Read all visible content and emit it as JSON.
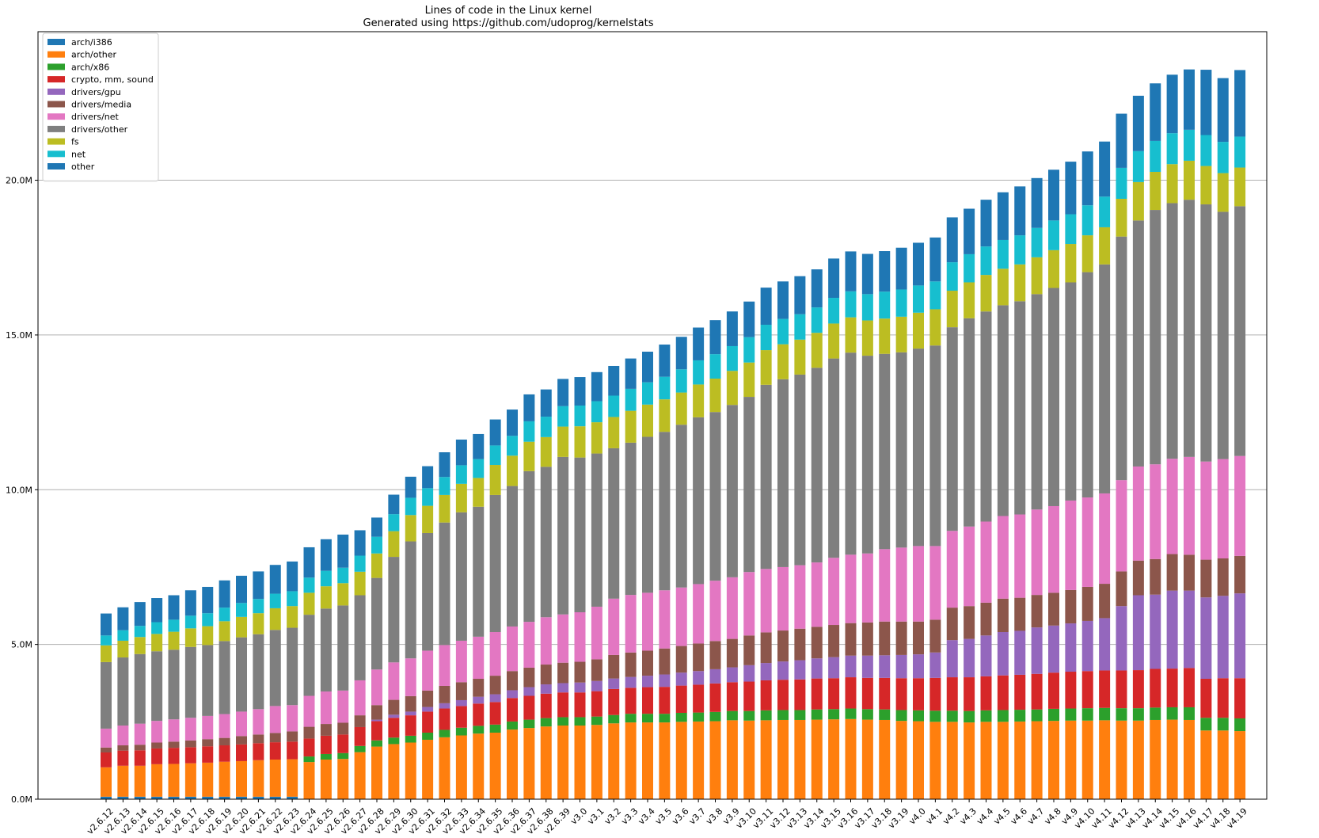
{
  "chart_data": {
    "type": "bar",
    "stacked": true,
    "title": "Lines of code in the Linux kernel",
    "subtitle": "Generated using https://github.com/udoprog/kernelstats",
    "xlabel": "",
    "ylabel": "",
    "ylim": [
      0,
      24800000
    ],
    "yticks": [
      0,
      5000000,
      10000000,
      15000000,
      20000000
    ],
    "ytick_labels": [
      "0.0M",
      "5.0M",
      "10.0M",
      "15.0M",
      "20.0M"
    ],
    "grid_y": true,
    "legend_position": "top-left",
    "categories": [
      "v2.6.12",
      "v2.6.13",
      "v2.6.14",
      "v2.6.15",
      "v2.6.16",
      "v2.6.17",
      "v2.6.18",
      "v2.6.19",
      "v2.6.20",
      "v2.6.21",
      "v2.6.22",
      "v2.6.23",
      "v2.6.24",
      "v2.6.25",
      "v2.6.26",
      "v2.6.27",
      "v2.6.28",
      "v2.6.29",
      "v2.6.30",
      "v2.6.31",
      "v2.6.32",
      "v2.6.33",
      "v2.6.34",
      "v2.6.35",
      "v2.6.36",
      "v2.6.37",
      "v2.6.38",
      "v2.6.39",
      "v3.0",
      "v3.1",
      "v3.2",
      "v3.3",
      "v3.4",
      "v3.5",
      "v3.6",
      "v3.7",
      "v3.8",
      "v3.9",
      "v3.10",
      "v3.11",
      "v3.12",
      "v3.13",
      "v3.14",
      "v3.15",
      "v3.16",
      "v3.17",
      "v3.18",
      "v3.19",
      "v4.0",
      "v4.1",
      "v4.2",
      "v4.3",
      "v4.4",
      "v4.5",
      "v4.6",
      "v4.7",
      "v4.8",
      "v4.9",
      "v4.10",
      "v4.11",
      "v4.12",
      "v4.13",
      "v4.14",
      "v4.15",
      "v4.16",
      "v4.17",
      "v4.18",
      "v4.19"
    ],
    "series": [
      {
        "name": "arch/i386",
        "color": "#1f77b4",
        "values": [
          80000,
          80000,
          80000,
          80000,
          80000,
          80000,
          80000,
          80000,
          80000,
          80000,
          80000,
          80000,
          0,
          0,
          0,
          0,
          0,
          0,
          0,
          0,
          0,
          0,
          0,
          0,
          0,
          0,
          0,
          0,
          0,
          0,
          0,
          0,
          0,
          0,
          0,
          0,
          0,
          0,
          0,
          0,
          0,
          0,
          0,
          0,
          0,
          0,
          0,
          0,
          0,
          0,
          0,
          0,
          0,
          0,
          0,
          0,
          0,
          0,
          0,
          0,
          0,
          0,
          0,
          0,
          0,
          0,
          0,
          0
        ]
      },
      {
        "name": "arch/other",
        "color": "#ff7f0e",
        "values": [
          950000,
          1000000,
          1000000,
          1050000,
          1060000,
          1080000,
          1100000,
          1130000,
          1150000,
          1180000,
          1200000,
          1210000,
          1200000,
          1280000,
          1300000,
          1520000,
          1700000,
          1780000,
          1830000,
          1920000,
          2000000,
          2060000,
          2120000,
          2150000,
          2250000,
          2300000,
          2350000,
          2380000,
          2380000,
          2400000,
          2450000,
          2480000,
          2480000,
          2480000,
          2500000,
          2510000,
          2520000,
          2550000,
          2540000,
          2550000,
          2560000,
          2560000,
          2570000,
          2580000,
          2590000,
          2570000,
          2560000,
          2530000,
          2520000,
          2500000,
          2500000,
          2480000,
          2500000,
          2500000,
          2510000,
          2520000,
          2530000,
          2540000,
          2540000,
          2550000,
          2540000,
          2540000,
          2560000,
          2570000,
          2560000,
          2220000,
          2220000,
          2200000
        ]
      },
      {
        "name": "arch/x86",
        "color": "#2ca02c",
        "values": [
          0,
          0,
          0,
          0,
          0,
          0,
          0,
          0,
          0,
          0,
          0,
          0,
          180000,
          180000,
          190000,
          200000,
          200000,
          210000,
          220000,
          230000,
          240000,
          250000,
          250000,
          260000,
          260000,
          270000,
          270000,
          270000,
          270000,
          270000,
          270000,
          280000,
          280000,
          280000,
          290000,
          290000,
          300000,
          300000,
          310000,
          320000,
          320000,
          320000,
          330000,
          330000,
          340000,
          340000,
          340000,
          350000,
          350000,
          360000,
          360000,
          370000,
          370000,
          380000,
          380000,
          380000,
          390000,
          390000,
          400000,
          400000,
          400000,
          400000,
          400000,
          400000,
          410000,
          410000,
          410000,
          410000
        ]
      },
      {
        "name": "crypto, mm, sound",
        "color": "#d62728",
        "values": [
          480000,
          490000,
          500000,
          510000,
          520000,
          520000,
          530000,
          530000,
          540000,
          550000,
          560000,
          570000,
          580000,
          590000,
          600000,
          610000,
          620000,
          640000,
          660000,
          680000,
          690000,
          700000,
          720000,
          730000,
          760000,
          770000,
          790000,
          800000,
          800000,
          820000,
          840000,
          840000,
          860000,
          870000,
          880000,
          900000,
          920000,
          930000,
          950000,
          970000,
          980000,
          990000,
          1000000,
          1000000,
          1010000,
          1010000,
          1020000,
          1030000,
          1040000,
          1060000,
          1080000,
          1090000,
          1100000,
          1120000,
          1130000,
          1150000,
          1170000,
          1190000,
          1200000,
          1210000,
          1220000,
          1230000,
          1250000,
          1250000,
          1270000,
          1260000,
          1280000,
          1300000
        ]
      },
      {
        "name": "drivers/gpu",
        "color": "#9467bd",
        "values": [
          0,
          0,
          0,
          0,
          0,
          0,
          0,
          0,
          0,
          0,
          0,
          0,
          0,
          0,
          0,
          0,
          50000,
          100000,
          120000,
          150000,
          170000,
          190000,
          220000,
          250000,
          250000,
          280000,
          300000,
          300000,
          320000,
          330000,
          340000,
          350000,
          370000,
          400000,
          420000,
          440000,
          460000,
          480000,
          530000,
          560000,
          590000,
          620000,
          650000,
          680000,
          700000,
          720000,
          730000,
          750000,
          770000,
          820000,
          1200000,
          1240000,
          1320000,
          1400000,
          1420000,
          1500000,
          1520000,
          1560000,
          1620000,
          1690000,
          2080000,
          2420000,
          2400000,
          2520000,
          2500000,
          2630000,
          2660000,
          2740000
        ]
      },
      {
        "name": "drivers/media",
        "color": "#8c564b",
        "values": [
          160000,
          170000,
          180000,
          190000,
          200000,
          220000,
          230000,
          240000,
          270000,
          280000,
          300000,
          330000,
          380000,
          380000,
          380000,
          380000,
          470000,
          480000,
          500000,
          530000,
          560000,
          580000,
          580000,
          600000,
          620000,
          630000,
          640000,
          660000,
          670000,
          700000,
          760000,
          790000,
          810000,
          840000,
          860000,
          890000,
          910000,
          920000,
          960000,
          990000,
          1000000,
          1020000,
          1020000,
          1040000,
          1050000,
          1070000,
          1090000,
          1080000,
          1060000,
          1060000,
          1050000,
          1060000,
          1060000,
          1080000,
          1070000,
          1050000,
          1060000,
          1080000,
          1100000,
          1110000,
          1120000,
          1120000,
          1150000,
          1180000,
          1160000,
          1220000,
          1210000,
          1210000
        ]
      },
      {
        "name": "drivers/net",
        "color": "#e377c2",
        "values": [
          610000,
          640000,
          680000,
          700000,
          720000,
          730000,
          750000,
          770000,
          790000,
          820000,
          870000,
          850000,
          1000000,
          1050000,
          1040000,
          1130000,
          1150000,
          1210000,
          1220000,
          1290000,
          1320000,
          1340000,
          1360000,
          1410000,
          1440000,
          1480000,
          1530000,
          1560000,
          1600000,
          1700000,
          1820000,
          1860000,
          1870000,
          1880000,
          1890000,
          1920000,
          1950000,
          1990000,
          2050000,
          2050000,
          2050000,
          2050000,
          2080000,
          2170000,
          2210000,
          2230000,
          2340000,
          2390000,
          2440000,
          2380000,
          2480000,
          2570000,
          2620000,
          2670000,
          2690000,
          2760000,
          2800000,
          2890000,
          2890000,
          2920000,
          2950000,
          3040000,
          3060000,
          3080000,
          3160000,
          3170000,
          3210000,
          3230000
        ]
      },
      {
        "name": "drivers/other",
        "color": "#7f7f7f",
        "values": [
          2150000,
          2200000,
          2250000,
          2250000,
          2250000,
          2290000,
          2290000,
          2360000,
          2400000,
          2420000,
          2460000,
          2500000,
          2620000,
          2680000,
          2750000,
          2750000,
          2960000,
          3410000,
          3780000,
          3800000,
          3960000,
          4150000,
          4200000,
          4430000,
          4540000,
          4870000,
          4860000,
          5090000,
          5000000,
          4950000,
          4860000,
          4920000,
          5040000,
          5120000,
          5260000,
          5390000,
          5450000,
          5570000,
          5660000,
          5950000,
          6070000,
          6160000,
          6290000,
          6440000,
          6530000,
          6390000,
          6310000,
          6310000,
          6380000,
          6480000,
          6580000,
          6730000,
          6790000,
          6810000,
          6890000,
          6960000,
          7050000,
          7050000,
          7280000,
          7400000,
          7870000,
          7950000,
          8220000,
          8260000,
          8310000,
          8310000,
          7990000,
          8070000
        ]
      },
      {
        "name": "fs",
        "color": "#bcbd22",
        "values": [
          540000,
          540000,
          550000,
          560000,
          580000,
          600000,
          610000,
          640000,
          660000,
          680000,
          700000,
          700000,
          710000,
          720000,
          720000,
          760000,
          790000,
          830000,
          850000,
          880000,
          890000,
          920000,
          930000,
          970000,
          980000,
          950000,
          960000,
          980000,
          1010000,
          1010000,
          1010000,
          1030000,
          1040000,
          1050000,
          1040000,
          1060000,
          1080000,
          1100000,
          1110000,
          1120000,
          1130000,
          1130000,
          1130000,
          1130000,
          1140000,
          1140000,
          1140000,
          1150000,
          1160000,
          1170000,
          1180000,
          1160000,
          1180000,
          1180000,
          1190000,
          1190000,
          1220000,
          1240000,
          1190000,
          1200000,
          1220000,
          1240000,
          1230000,
          1260000,
          1260000,
          1240000,
          1250000,
          1250000
        ]
      },
      {
        "name": "net",
        "color": "#17becf",
        "values": [
          320000,
          340000,
          360000,
          380000,
          390000,
          410000,
          420000,
          440000,
          450000,
          460000,
          470000,
          480000,
          490000,
          500000,
          500000,
          520000,
          540000,
          550000,
          560000,
          570000,
          580000,
          600000,
          610000,
          630000,
          640000,
          660000,
          660000,
          660000,
          670000,
          680000,
          690000,
          710000,
          720000,
          730000,
          750000,
          780000,
          790000,
          800000,
          820000,
          820000,
          820000,
          820000,
          820000,
          830000,
          840000,
          850000,
          870000,
          880000,
          880000,
          900000,
          920000,
          910000,
          920000,
          930000,
          940000,
          950000,
          960000,
          960000,
          970000,
          990000,
          1000000,
          1000000,
          1000000,
          1000000,
          1000000,
          1000000,
          1010000,
          1000000
        ]
      },
      {
        "name": "other",
        "color": "#1f77b4",
        "values": [
          710000,
          740000,
          770000,
          780000,
          790000,
          820000,
          850000,
          880000,
          880000,
          890000,
          930000,
          960000,
          980000,
          1020000,
          1070000,
          820000,
          620000,
          630000,
          680000,
          710000,
          800000,
          830000,
          810000,
          840000,
          850000,
          870000,
          880000,
          880000,
          920000,
          940000,
          960000,
          980000,
          990000,
          1040000,
          1050000,
          1060000,
          1100000,
          1120000,
          1150000,
          1200000,
          1210000,
          1230000,
          1230000,
          1270000,
          1290000,
          1300000,
          1310000,
          1350000,
          1380000,
          1420000,
          1450000,
          1470000,
          1510000,
          1540000,
          1580000,
          1610000,
          1640000,
          1700000,
          1740000,
          1780000,
          1750000,
          1790000,
          1860000,
          1890000,
          1950000,
          2110000,
          2060000,
          2150000
        ]
      }
    ]
  }
}
